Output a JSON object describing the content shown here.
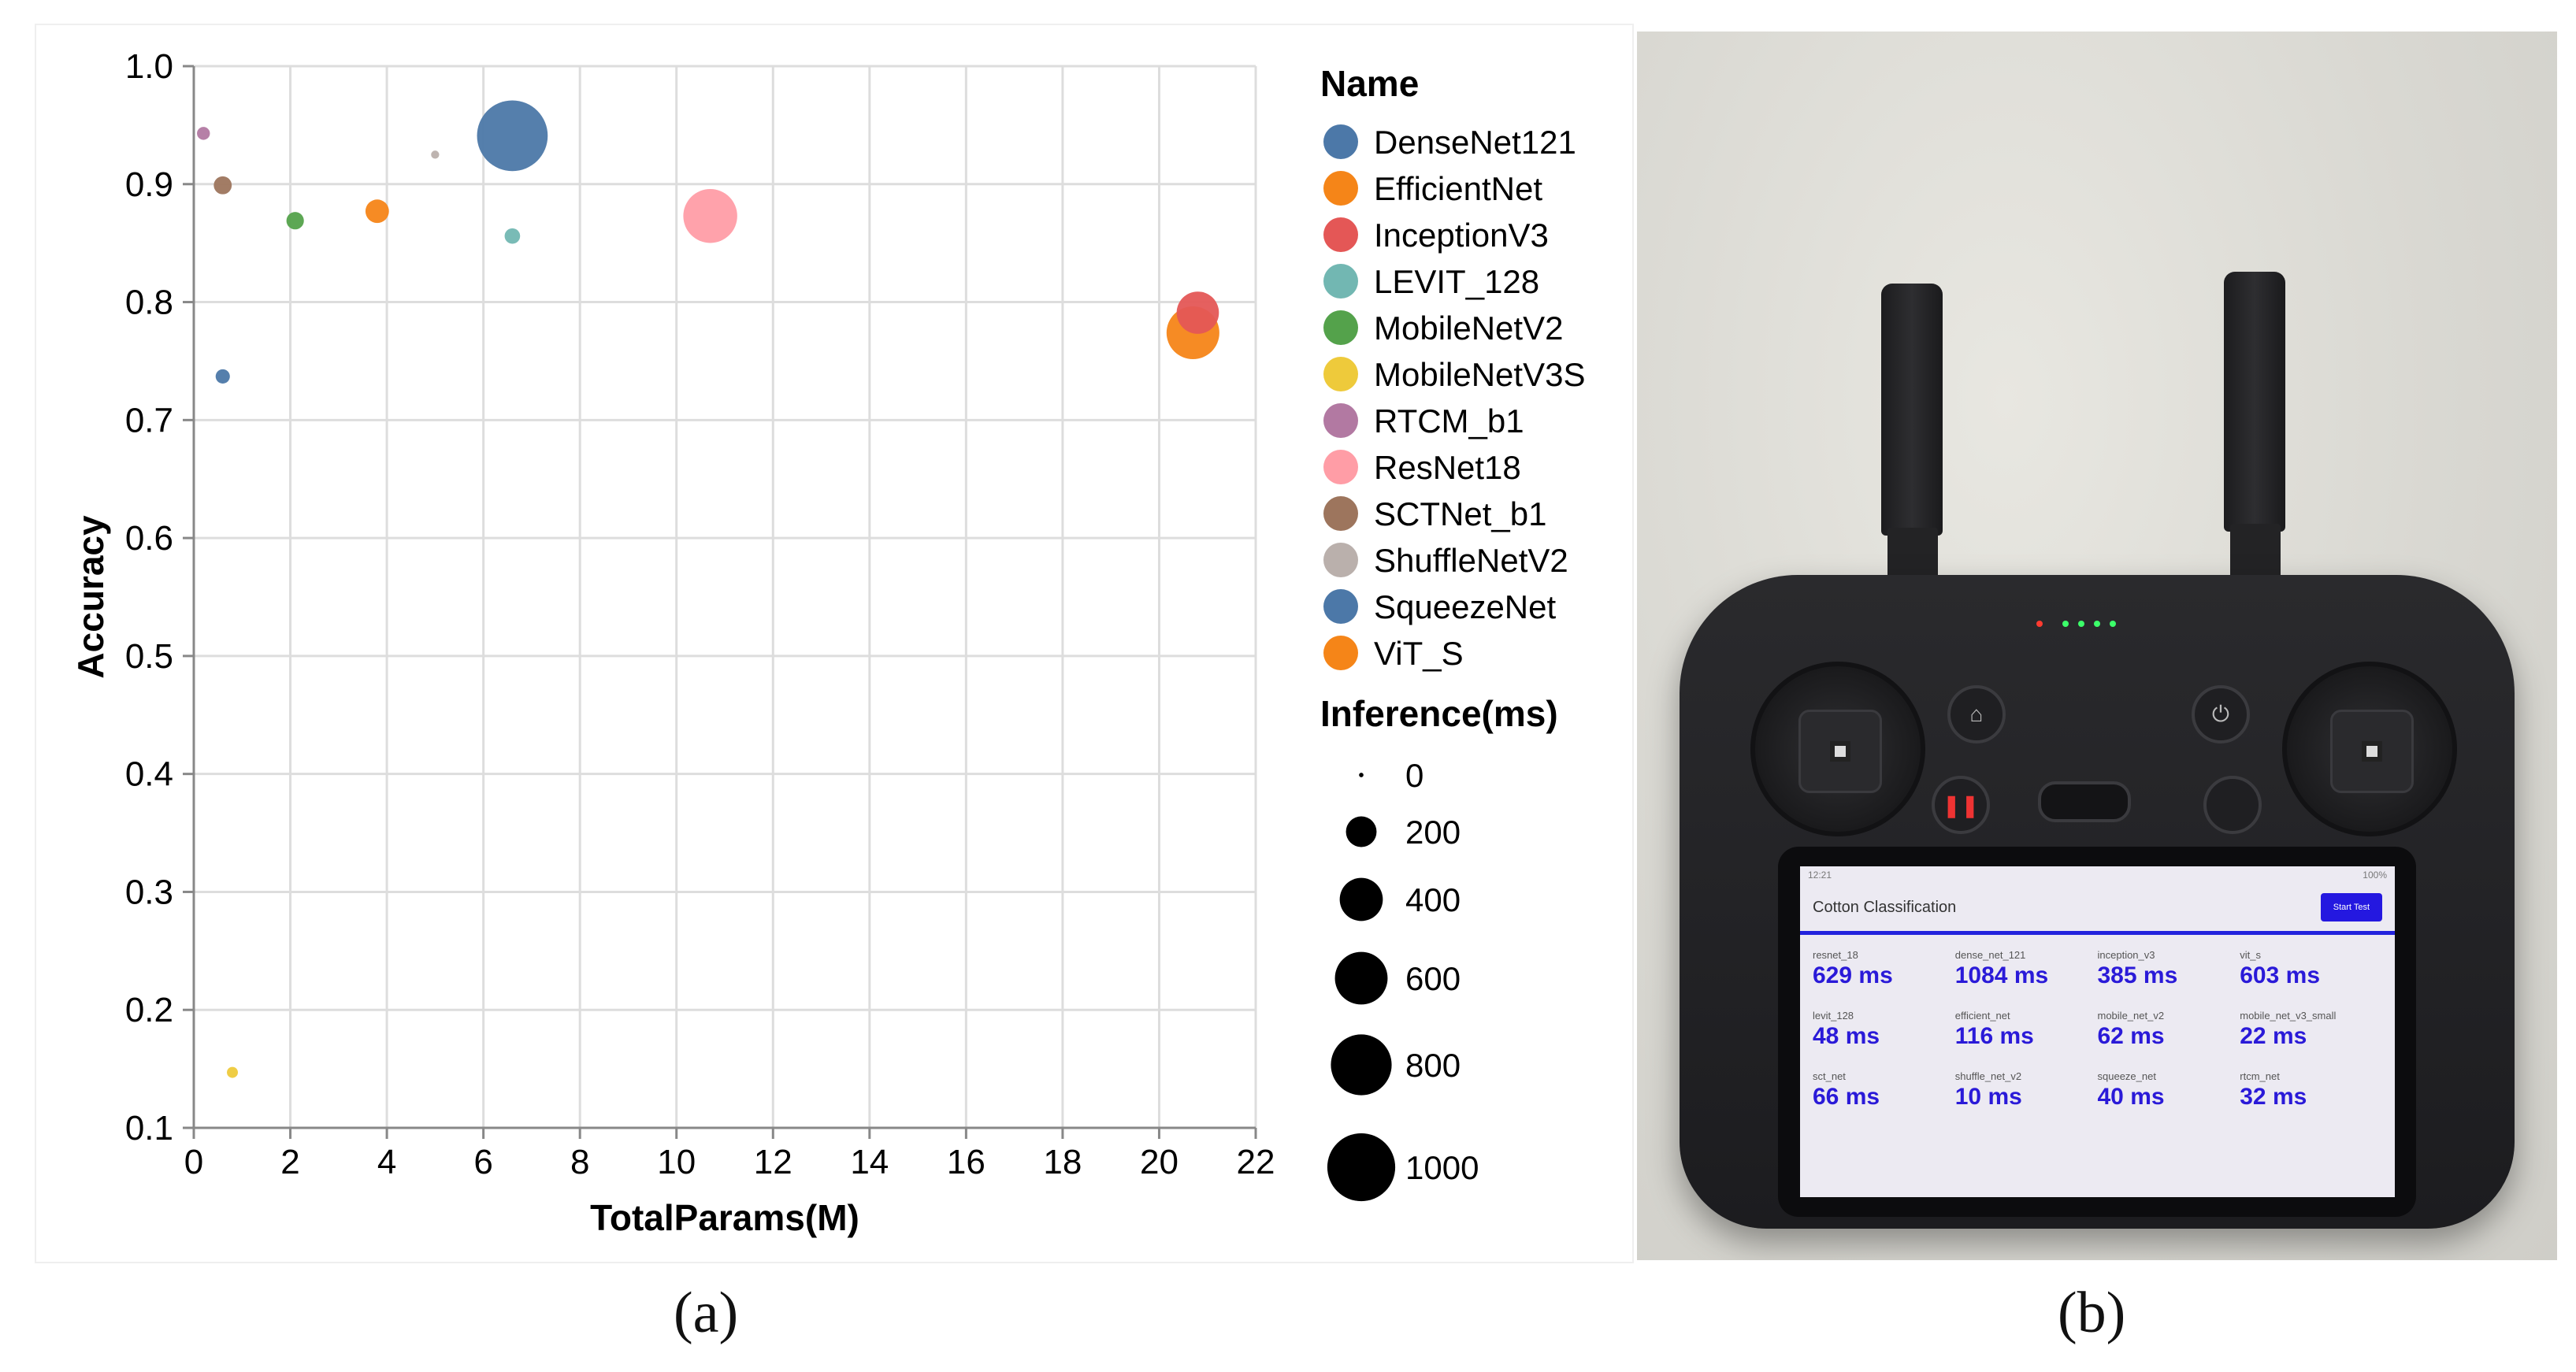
{
  "chart_data": {
    "type": "scatter",
    "xlabel": "TotalParams(M)",
    "ylabel": "Accuracy",
    "xlim": [
      0,
      22
    ],
    "ylim": [
      0.1,
      1.0
    ],
    "x_ticks": [
      "0",
      "2",
      "4",
      "6",
      "8",
      "10",
      "12",
      "14",
      "16",
      "18",
      "20",
      "22"
    ],
    "y_ticks": [
      "1.0",
      "0.9",
      "0.8",
      "0.7",
      "0.6",
      "0.5",
      "0.4",
      "0.3",
      "0.2",
      "0.1"
    ],
    "grid": true,
    "legend_placement": "right",
    "color_legend_title": "Name",
    "size_legend_title": "Inference(ms)",
    "size_legend_values": [
      "0",
      "200",
      "400",
      "600",
      "800",
      "1000"
    ],
    "series": [
      {
        "name": "DenseNet121",
        "color": "#4c78a8",
        "x": 6.6,
        "y": 0.941,
        "inference_ms": 1084
      },
      {
        "name": "EfficientNet",
        "color": "#f58518",
        "x": 3.8,
        "y": 0.877,
        "inference_ms": 116
      },
      {
        "name": "InceptionV3",
        "color": "#e45756",
        "x": 20.8,
        "y": 0.791,
        "inference_ms": 385
      },
      {
        "name": "LEVIT_128",
        "color": "#72b7b2",
        "x": 6.6,
        "y": 0.856,
        "inference_ms": 48
      },
      {
        "name": "MobileNetV2",
        "color": "#54a24b",
        "x": 2.1,
        "y": 0.869,
        "inference_ms": 62
      },
      {
        "name": "MobileNetV3S",
        "color": "#eeca3b",
        "x": 0.8,
        "y": 0.147,
        "inference_ms": 22
      },
      {
        "name": "RTCM_b1",
        "color": "#b279a2",
        "x": 0.2,
        "y": 0.943,
        "inference_ms": 32
      },
      {
        "name": "ResNet18",
        "color": "#ff9da6",
        "x": 10.7,
        "y": 0.873,
        "inference_ms": 629
      },
      {
        "name": "SCTNet_b1",
        "color": "#9d755d",
        "x": 0.6,
        "y": 0.899,
        "inference_ms": 66
      },
      {
        "name": "ShuffleNetV2",
        "color": "#bab0ac",
        "x": 5.0,
        "y": 0.925,
        "inference_ms": 10
      },
      {
        "name": "SqueezeNet",
        "color": "#4c78a8",
        "x": 0.6,
        "y": 0.737,
        "inference_ms": 40
      },
      {
        "name": "ViT_S",
        "color": "#f58518",
        "x": 20.7,
        "y": 0.774,
        "inference_ms": 603
      }
    ]
  },
  "captions": {
    "a": "(a)",
    "b": "(b)"
  },
  "device": {
    "status_time": "12:21",
    "status_battery": "100%",
    "app_title": "Cotton Classification",
    "start_button": "Start Test",
    "results": [
      {
        "label": "resnet_18",
        "value": "629 ms"
      },
      {
        "label": "dense_net_121",
        "value": "1084 ms"
      },
      {
        "label": "inception_v3",
        "value": "385 ms"
      },
      {
        "label": "vit_s",
        "value": "603 ms"
      },
      {
        "label": "levit_128",
        "value": "48 ms"
      },
      {
        "label": "efficient_net",
        "value": "116 ms"
      },
      {
        "label": "mobile_net_v2",
        "value": "62 ms"
      },
      {
        "label": "mobile_net_v3_small",
        "value": "22 ms"
      },
      {
        "label": "sct_net",
        "value": "66 ms"
      },
      {
        "label": "shuffle_net_v2",
        "value": "10 ms"
      },
      {
        "label": "squeeze_net",
        "value": "40 ms"
      },
      {
        "label": "rtcm_net",
        "value": "32 ms"
      }
    ]
  }
}
